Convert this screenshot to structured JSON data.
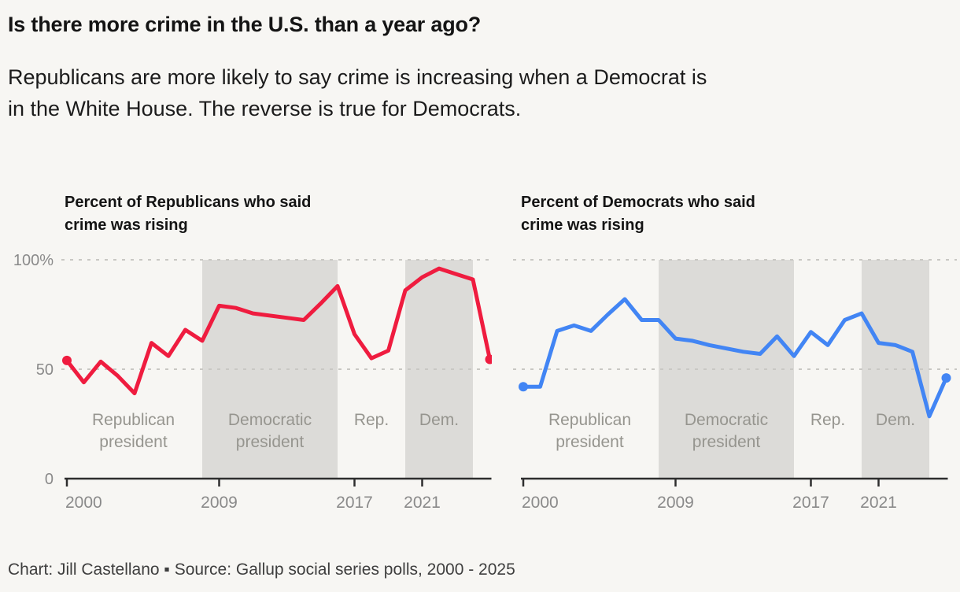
{
  "header": {
    "title": "Is there more crime in the U.S. than a year ago?",
    "subtitle": "Republicans are more likely to say crime is increasing when a Democrat is\nin the White House. The reverse is true for Democrats."
  },
  "footer": {
    "credit": "Chart: Jill Castellano ▪ Source: Gallup social series polls, 2000 - 2025"
  },
  "colors": {
    "background": "#f7f6f3",
    "shaded_band": "#dcdbd8",
    "gridline": "#c9c8c4",
    "axis": "#2e2e2e",
    "tick_label": "#8a8a8a",
    "band_label": "#96958f",
    "republican_line": "#ef1c3f",
    "democrat_line": "#4285f4"
  },
  "chart_data": [
    {
      "type": "line",
      "title": "Percent of Republicans who said\ncrime was rising",
      "series_name": "Republicans",
      "line_color": "#ef1c3f",
      "x_years": [
        2000,
        2001,
        2002,
        2003,
        2004,
        2005,
        2006,
        2007,
        2008,
        2009,
        2010,
        2011,
        2013,
        2014,
        2015,
        2016,
        2017,
        2018,
        2019,
        2020,
        2021,
        2022,
        2023,
        2024,
        2025
      ],
      "y_percent": [
        54,
        44,
        53.5,
        47,
        39,
        62,
        56,
        68,
        63,
        79,
        78,
        75.5,
        73.5,
        72.5,
        80,
        88,
        66,
        55,
        58.5,
        86,
        92,
        96,
        93.5,
        91,
        54.5
      ],
      "ylim": [
        0,
        100
      ],
      "xlim": [
        1999.85,
        2025.1
      ],
      "grid": "dashed-horizontal",
      "show_y_labels": true,
      "endpoint_dots": true,
      "y_ticks": [
        {
          "value": 100,
          "label": "100%"
        },
        {
          "value": 50,
          "label": "50"
        },
        {
          "value": 0,
          "label": "0"
        }
      ],
      "x_ticks": [
        {
          "value": 2000,
          "label": "2000"
        },
        {
          "value": 2009,
          "label": "2009"
        },
        {
          "value": 2017,
          "label": "2017"
        },
        {
          "value": 2021,
          "label": "2021"
        }
      ],
      "bands": [
        {
          "from_year": 1999.85,
          "to_year": 2008,
          "shaded": false,
          "label": "Republican\npresident"
        },
        {
          "from_year": 2008,
          "to_year": 2016,
          "shaded": true,
          "label": "Democratic\npresident"
        },
        {
          "from_year": 2016,
          "to_year": 2020,
          "shaded": false,
          "label": "Rep."
        },
        {
          "from_year": 2020,
          "to_year": 2024,
          "shaded": true,
          "label": "Dem."
        }
      ]
    },
    {
      "type": "line",
      "title": "Percent of Democrats who said\ncrime was rising",
      "series_name": "Democrats",
      "line_color": "#4285f4",
      "x_years": [
        2000,
        2001,
        2002,
        2003,
        2004,
        2005,
        2006,
        2007,
        2008,
        2009,
        2010,
        2011,
        2013,
        2014,
        2015,
        2016,
        2017,
        2018,
        2019,
        2020,
        2021,
        2022,
        2023,
        2024,
        2025
      ],
      "y_percent": [
        42,
        42,
        67.5,
        70,
        67.5,
        75,
        82,
        72.5,
        72.5,
        64,
        63,
        61,
        58,
        57,
        65,
        56,
        67,
        61,
        72.5,
        75.5,
        62,
        61,
        58,
        28.5,
        46
      ],
      "ylim": [
        0,
        100
      ],
      "xlim": [
        1999.85,
        2025.1
      ],
      "grid": "dashed-horizontal",
      "show_y_labels": false,
      "endpoint_dots": true,
      "y_ticks": [
        {
          "value": 100,
          "label": "100%"
        },
        {
          "value": 50,
          "label": "50"
        },
        {
          "value": 0,
          "label": "0"
        }
      ],
      "x_ticks": [
        {
          "value": 2000,
          "label": "2000"
        },
        {
          "value": 2009,
          "label": "2009"
        },
        {
          "value": 2017,
          "label": "2017"
        },
        {
          "value": 2021,
          "label": "2021"
        }
      ],
      "bands": [
        {
          "from_year": 1999.85,
          "to_year": 2008,
          "shaded": false,
          "label": "Republican\npresident"
        },
        {
          "from_year": 2008,
          "to_year": 2016,
          "shaded": true,
          "label": "Democratic\npresident"
        },
        {
          "from_year": 2016,
          "to_year": 2020,
          "shaded": false,
          "label": "Rep."
        },
        {
          "from_year": 2020,
          "to_year": 2024,
          "shaded": true,
          "label": "Dem."
        }
      ]
    }
  ]
}
